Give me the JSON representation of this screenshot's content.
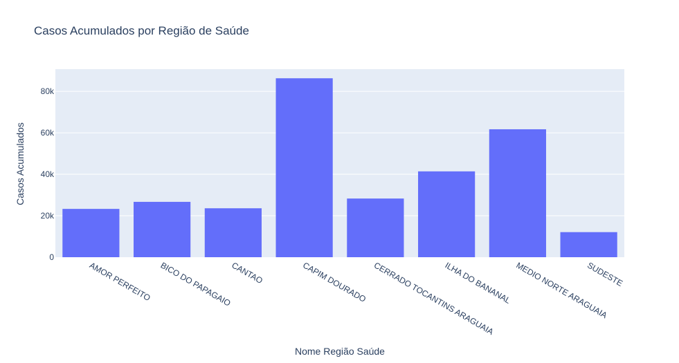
{
  "chart_data": {
    "type": "bar",
    "title": "Casos Acumulados por Região de Saúde",
    "xlabel": "Nome Região Saúde",
    "ylabel": "Casos Acumulados",
    "categories": [
      "AMOR PERFEITO",
      "BICO DO PAPAGAIO",
      "CANTAO",
      "CAPIM DOURADO",
      "CERRADO TOCANTINS ARAGUAIA",
      "ILHA DO BANANAL",
      "MEDIO NORTE ARAGUAIA",
      "SUDESTE"
    ],
    "values": [
      23300,
      26700,
      23600,
      86300,
      28300,
      41400,
      61700,
      12100
    ],
    "ylim": [
      0,
      90700
    ],
    "yticks": [
      0,
      20000,
      40000,
      60000,
      80000
    ],
    "ytick_labels": [
      "0",
      "20k",
      "40k",
      "60k",
      "80k"
    ],
    "grid": true,
    "colors": {
      "bar": "#636efa",
      "plot_bg": "#e5ecf6",
      "grid": "#ffffff",
      "text": "#2a3f5f"
    }
  }
}
